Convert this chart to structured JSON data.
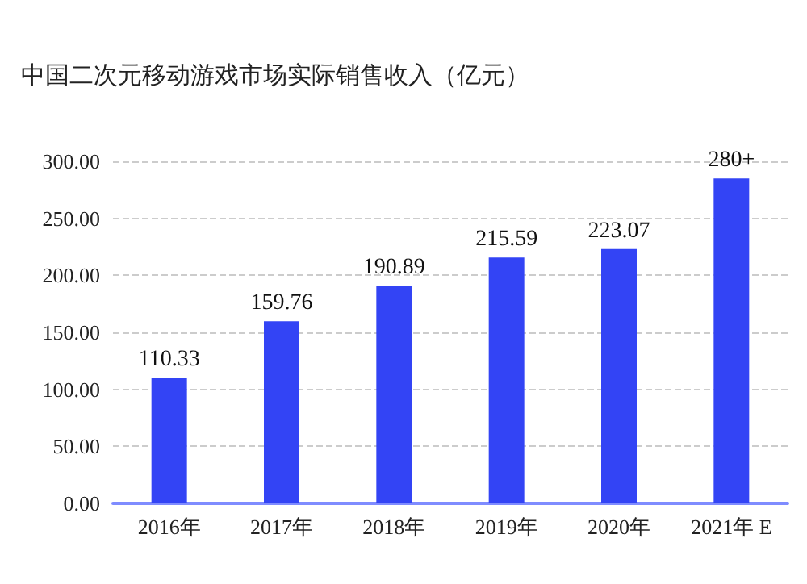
{
  "chart_data": {
    "type": "bar",
    "title": "中国二次元移动游戏市场实际销售收入（亿元）",
    "categories": [
      "2016年",
      "2017年",
      "2018年",
      "2019年",
      "2020年",
      "2021年 E"
    ],
    "values": [
      110.33,
      159.76,
      190.89,
      215.59,
      223.07,
      285
    ],
    "value_labels": [
      "110.33",
      "159.76",
      "190.89",
      "215.59",
      "223.07",
      "280+"
    ],
    "color": "#3344f5",
    "ylim": [
      0,
      300
    ],
    "yticks": [
      {
        "value": 0,
        "label": "0.00"
      },
      {
        "value": 50,
        "label": "50.00"
      },
      {
        "value": 100,
        "label": "100.00"
      },
      {
        "value": 150,
        "label": "150.00"
      },
      {
        "value": 200,
        "label": "200.00"
      },
      {
        "value": 250,
        "label": "250.00"
      },
      {
        "value": 300,
        "label": "300.00"
      }
    ],
    "grid": "y"
  }
}
